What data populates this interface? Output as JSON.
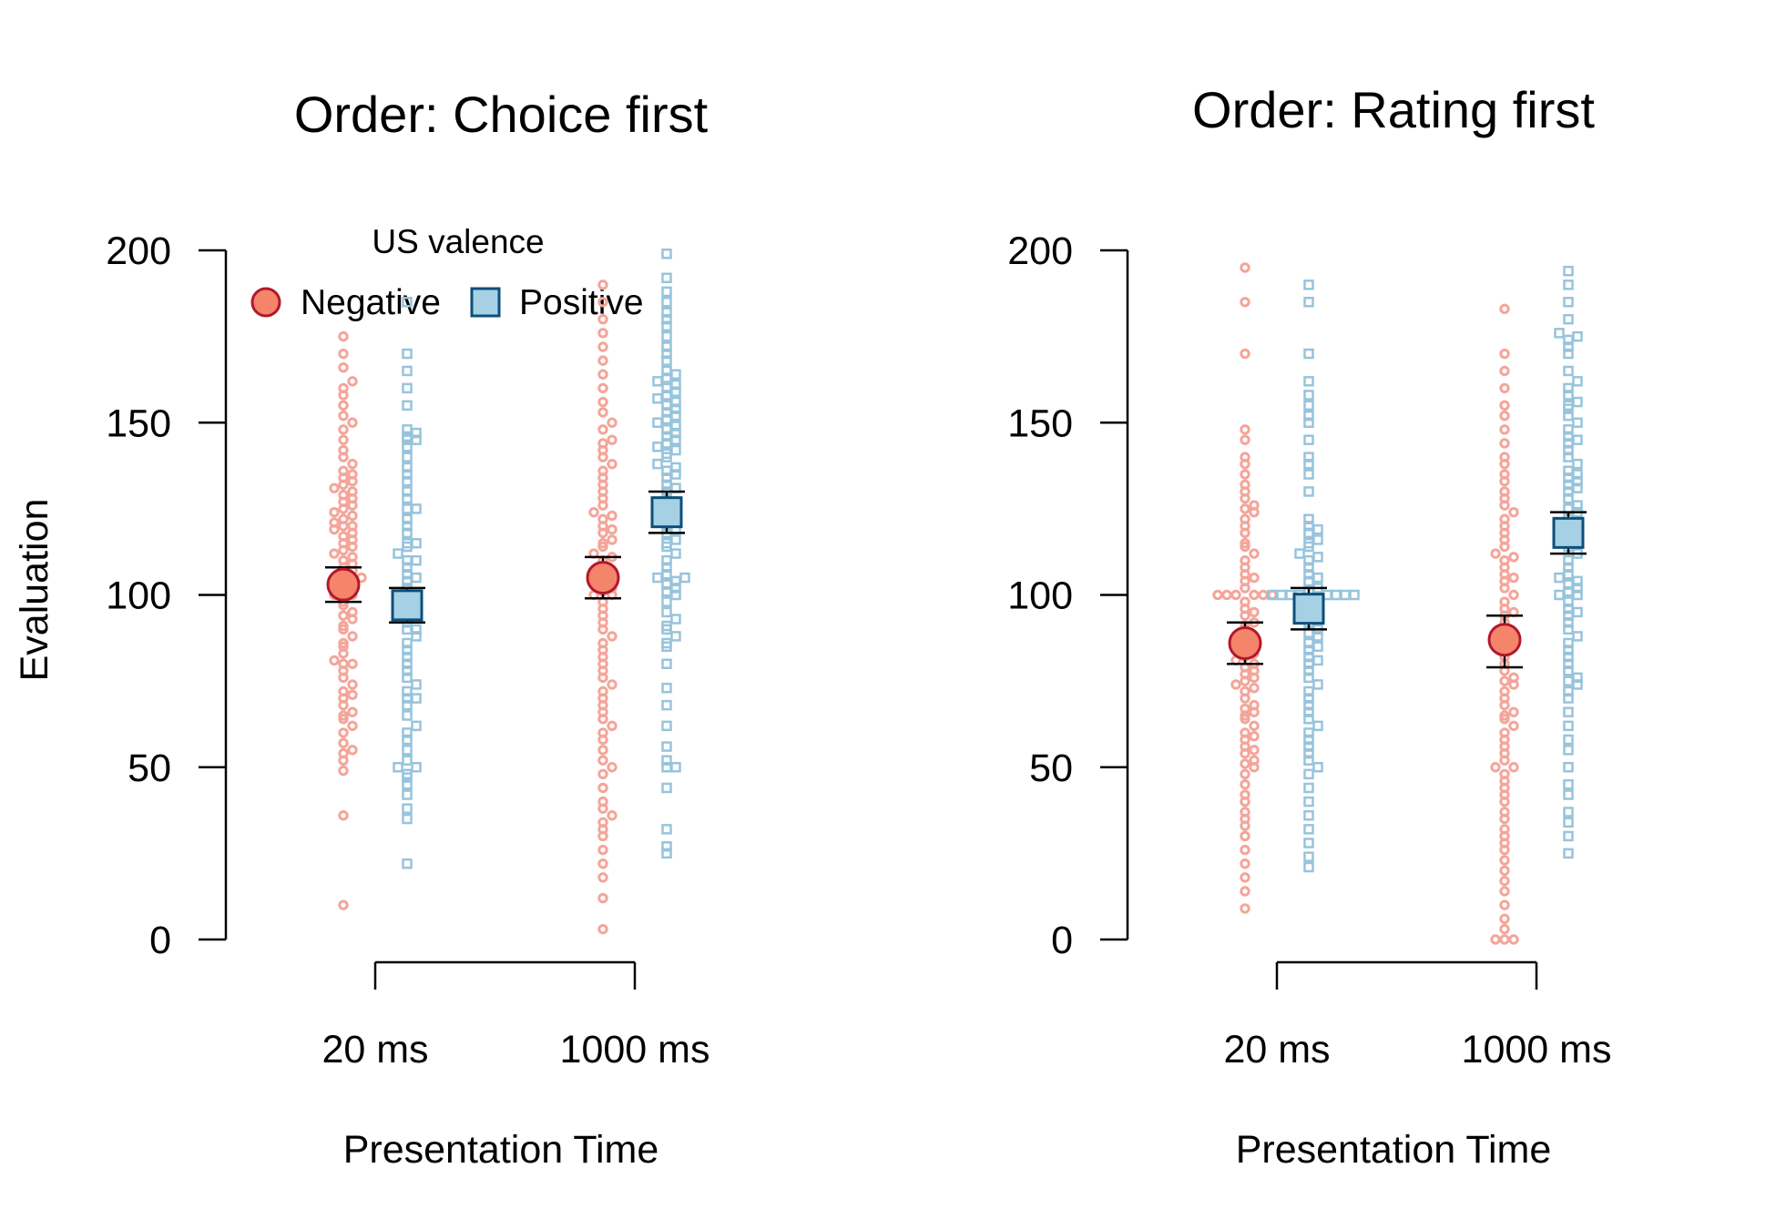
{
  "colors": {
    "negative_fill": "#F4846A",
    "negative_stroke": "#B2182B",
    "negative_raw": "#F4A59A",
    "positive_fill": "#A6D0E4",
    "positive_stroke": "#0B4F7C",
    "positive_raw": "#97C4DC",
    "axis": "#000000"
  },
  "legend": {
    "title": "US valence",
    "negative": "Negative",
    "positive": "Positive",
    "negative_icon": "circle-marker",
    "positive_icon": "square-marker"
  },
  "chart_data": [
    {
      "type": "scatter",
      "subtype": "beeswarm with means and error bars",
      "title": "Order: Choice first",
      "xlabel": "Presentation Time",
      "ylabel": "Evaluation",
      "categories": [
        "20 ms",
        "1000 ms"
      ],
      "ylim": [
        0,
        200
      ],
      "yticks": [
        "0",
        "50",
        "100",
        "150",
        "200"
      ],
      "grid": false,
      "legend_position": "top",
      "series": [
        {
          "name": "Negative",
          "means": [
            103,
            105
          ],
          "ci_low": [
            98,
            99
          ],
          "ci_high": [
            108,
            111
          ],
          "raw": [
            [
              10,
              36,
              49,
              52,
              54,
              55,
              57,
              60,
              62,
              64,
              65,
              66,
              68,
              70,
              71,
              72,
              74,
              76,
              78,
              80,
              80,
              81,
              83,
              85,
              86,
              88,
              90,
              91,
              93,
              94,
              95,
              97,
              98,
              100,
              100,
              101,
              102,
              103,
              103,
              104,
              105,
              106,
              107,
              108,
              109,
              110,
              111,
              112,
              113,
              114,
              115,
              116,
              117,
              118,
              119,
              120,
              120,
              121,
              122,
              123,
              124,
              125,
              126,
              127,
              128,
              129,
              130,
              131,
              132,
              133,
              134,
              135,
              136,
              138,
              140,
              142,
              145,
              148,
              150,
              152,
              155,
              158,
              160,
              162,
              166,
              170,
              175
            ],
            [
              3,
              12,
              18,
              22,
              26,
              30,
              32,
              34,
              36,
              38,
              40,
              44,
              48,
              50,
              52,
              55,
              58,
              60,
              62,
              64,
              66,
              68,
              70,
              72,
              74,
              76,
              78,
              80,
              82,
              84,
              86,
              88,
              90,
              92,
              94,
              96,
              98,
              100,
              100,
              101,
              102,
              103,
              105,
              106,
              107,
              108,
              110,
              111,
              112,
              114,
              115,
              116,
              118,
              119,
              120,
              122,
              123,
              124,
              126,
              128,
              130,
              132,
              134,
              136,
              138,
              140,
              142,
              144,
              145,
              148,
              150,
              153,
              156,
              160,
              164,
              168,
              172,
              176,
              180,
              185,
              190
            ]
          ]
        },
        {
          "name": "Positive",
          "means": [
            97,
            124
          ],
          "ci_low": [
            92,
            118
          ],
          "ci_high": [
            102,
            130
          ],
          "raw": [
            [
              22,
              35,
              38,
              42,
              45,
              47,
              48,
              50,
              50,
              52,
              55,
              58,
              60,
              62,
              65,
              68,
              70,
              70,
              72,
              74,
              76,
              78,
              80,
              82,
              84,
              86,
              88,
              90,
              90,
              92,
              94,
              95,
              96,
              98,
              100,
              100,
              102,
              104,
              105,
              106,
              108,
              110,
              110,
              112,
              114,
              115,
              115,
              118,
              120,
              122,
              125,
              125,
              128,
              130,
              133,
              135,
              137,
              140,
              143,
              145,
              145,
              146,
              147,
              148,
              155,
              160,
              165,
              170,
              185
            ],
            [
              25,
              27,
              32,
              44,
              50,
              50,
              52,
              56,
              62,
              68,
              73,
              80,
              85,
              86,
              88,
              90,
              91,
              93,
              95,
              98,
              100,
              101,
              102,
              103,
              104,
              105,
              105,
              106,
              108,
              110,
              112,
              114,
              115,
              116,
              118,
              119,
              120,
              121,
              122,
              124,
              125,
              126,
              128,
              130,
              131,
              132,
              134,
              135,
              136,
              137,
              138,
              140,
              141,
              142,
              143,
              144,
              145,
              146,
              147,
              148,
              149,
              150,
              151,
              152,
              153,
              154,
              155,
              156,
              157,
              158,
              159,
              160,
              161,
              162,
              163,
              164,
              165,
              168,
              170,
              172,
              175,
              178,
              180,
              182,
              185,
              188,
              192,
              199
            ]
          ]
        }
      ]
    },
    {
      "type": "scatter",
      "subtype": "beeswarm with means and error bars",
      "title": "Order: Rating first",
      "xlabel": "Presentation Time",
      "ylabel": "",
      "categories": [
        "20 ms",
        "1000 ms"
      ],
      "ylim": [
        0,
        200
      ],
      "yticks": [
        "0",
        "50",
        "100",
        "150",
        "200"
      ],
      "grid": false,
      "series": [
        {
          "name": "Negative",
          "means": [
            86,
            87
          ],
          "ci_low": [
            80,
            79
          ],
          "ci_high": [
            92,
            94
          ],
          "raw": [
            [
              9,
              14,
              18,
              22,
              26,
              30,
              33,
              35,
              37,
              40,
              42,
              45,
              48,
              50,
              51,
              52,
              54,
              55,
              56,
              58,
              59,
              60,
              62,
              64,
              65,
              66,
              67,
              68,
              70,
              72,
              73,
              74,
              75,
              76,
              77,
              78,
              79,
              80,
              81,
              82,
              83,
              84,
              85,
              86,
              87,
              88,
              90,
              91,
              92,
              94,
              95,
              96,
              98,
              100,
              100,
              100,
              100,
              100,
              100,
              102,
              104,
              105,
              106,
              108,
              110,
              112,
              114,
              115,
              118,
              120,
              122,
              124,
              125,
              126,
              128,
              130,
              132,
              135,
              138,
              140,
              145,
              148,
              170,
              185,
              195
            ],
            [
              0,
              0,
              0,
              3,
              6,
              10,
              14,
              17,
              20,
              23,
              26,
              28,
              30,
              32,
              35,
              37,
              40,
              42,
              44,
              46,
              48,
              50,
              50,
              52,
              54,
              56,
              58,
              60,
              62,
              64,
              65,
              66,
              68,
              70,
              72,
              74,
              75,
              76,
              78,
              80,
              82,
              84,
              85,
              86,
              88,
              90,
              92,
              94,
              95,
              96,
              98,
              100,
              102,
              104,
              105,
              106,
              108,
              110,
              111,
              112,
              114,
              116,
              118,
              120,
              122,
              124,
              126,
              128,
              130,
              133,
              135,
              138,
              140,
              144,
              148,
              152,
              155,
              160,
              165,
              170,
              183
            ]
          ]
        },
        {
          "name": "Positive",
          "means": [
            96,
            118
          ],
          "ci_low": [
            90,
            112
          ],
          "ci_high": [
            102,
            124
          ],
          "raw": [
            [
              21,
              24,
              28,
              32,
              36,
              40,
              44,
              48,
              50,
              52,
              54,
              56,
              58,
              60,
              62,
              64,
              66,
              68,
              70,
              72,
              74,
              76,
              78,
              80,
              81,
              82,
              84,
              85,
              86,
              88,
              89,
              90,
              92,
              93,
              94,
              95,
              96,
              98,
              99,
              100,
              100,
              100,
              100,
              100,
              100,
              100,
              100,
              101,
              102,
              104,
              105,
              106,
              108,
              110,
              111,
              112,
              114,
              115,
              116,
              118,
              119,
              120,
              122,
              130,
              135,
              138,
              140,
              145,
              150,
              152,
              155,
              158,
              162,
              170,
              185,
              190
            ],
            [
              25,
              30,
              34,
              37,
              42,
              45,
              50,
              55,
              58,
              62,
              66,
              70,
              72,
              74,
              75,
              76,
              78,
              80,
              82,
              84,
              86,
              88,
              90,
              92,
              94,
              95,
              96,
              98,
              100,
              100,
              101,
              102,
              103,
              104,
              105,
              106,
              108,
              110,
              112,
              114,
              115,
              116,
              118,
              120,
              122,
              124,
              125,
              126,
              128,
              130,
              131,
              132,
              133,
              134,
              135,
              136,
              138,
              140,
              142,
              144,
              145,
              146,
              148,
              150,
              152,
              154,
              155,
              156,
              158,
              160,
              162,
              165,
              170,
              172,
              174,
              175,
              176,
              180,
              185,
              190,
              194
            ]
          ]
        }
      ]
    }
  ]
}
